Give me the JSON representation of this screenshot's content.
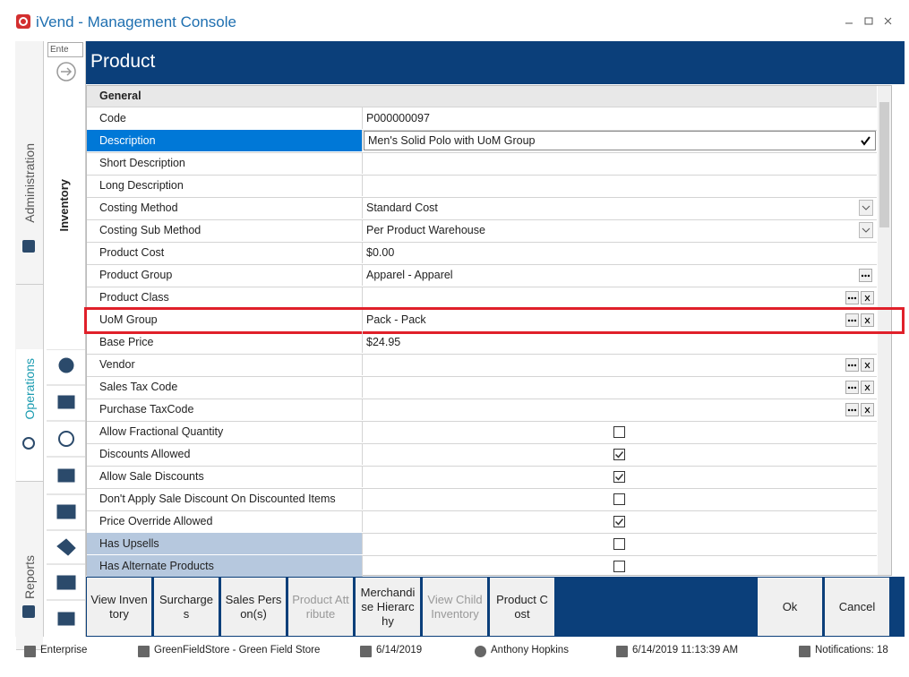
{
  "window": {
    "title": "iVend - Management Console"
  },
  "sidebar": {
    "tabs": [
      "Administration",
      "Operations",
      "Reports"
    ],
    "active_tab": 1,
    "search": "Ente",
    "section": "Inventory"
  },
  "header": {
    "title": "Product"
  },
  "grid": {
    "group": "General",
    "rows": [
      {
        "label": "Code",
        "value": "P000000097"
      },
      {
        "label": "Description",
        "value": "Men's Solid Polo with UoM Group",
        "editor": "confirm",
        "selected": true
      },
      {
        "label": "Short Description"
      },
      {
        "label": "Long Description"
      },
      {
        "label": "Costing Method",
        "value": "Standard Cost",
        "editor": "dropdown"
      },
      {
        "label": "Costing Sub Method",
        "value": "Per Product Warehouse",
        "editor": "dropdown"
      },
      {
        "label": "Product Cost",
        "value": "$0.00"
      },
      {
        "label": "Product Group",
        "value": "Apparel - Apparel",
        "editor": "lookup"
      },
      {
        "label": "Product Class",
        "editor": "lookup-clear"
      },
      {
        "label": "UoM Group",
        "value": "Pack - Pack",
        "editor": "lookup-clear",
        "highlighted": true
      },
      {
        "label": "Base Price",
        "value": "$24.95"
      },
      {
        "label": "Vendor",
        "editor": "lookup-clear"
      },
      {
        "label": "Sales Tax Code",
        "editor": "lookup-clear"
      },
      {
        "label": "Purchase TaxCode",
        "editor": "lookup-clear"
      },
      {
        "label": "Allow Fractional Quantity",
        "checked": false
      },
      {
        "label": "Discounts Allowed",
        "checked": true
      },
      {
        "label": "Allow Sale Discounts",
        "checked": true
      },
      {
        "label": "Don't Apply Sale Discount On Discounted Items",
        "checked": false
      },
      {
        "label": "Price Override Allowed",
        "checked": true
      },
      {
        "label": "Has Upsells",
        "checked": false,
        "shaded": true
      },
      {
        "label": "Has Alternate Products",
        "checked": false,
        "shaded": true
      }
    ]
  },
  "toolbar": {
    "buttons": [
      {
        "label": "View Inventory",
        "enabled": true
      },
      {
        "label": "Surcharges",
        "enabled": true
      },
      {
        "label": "Sales Person(s)",
        "enabled": true
      },
      {
        "label": "Product Attribute",
        "enabled": false
      },
      {
        "label": "Merchandise Hierarchy",
        "enabled": true
      },
      {
        "label": "View Child Inventory",
        "enabled": false
      },
      {
        "label": "Product Cost",
        "enabled": true
      }
    ],
    "actions": [
      "Ok",
      "Cancel"
    ]
  },
  "status": {
    "items": [
      "Enterprise",
      "GreenFieldStore - Green Field Store",
      "6/14/2019",
      "Anthony Hopkins",
      "6/14/2019 11:13:39 AM",
      "Notifications: 18"
    ]
  }
}
